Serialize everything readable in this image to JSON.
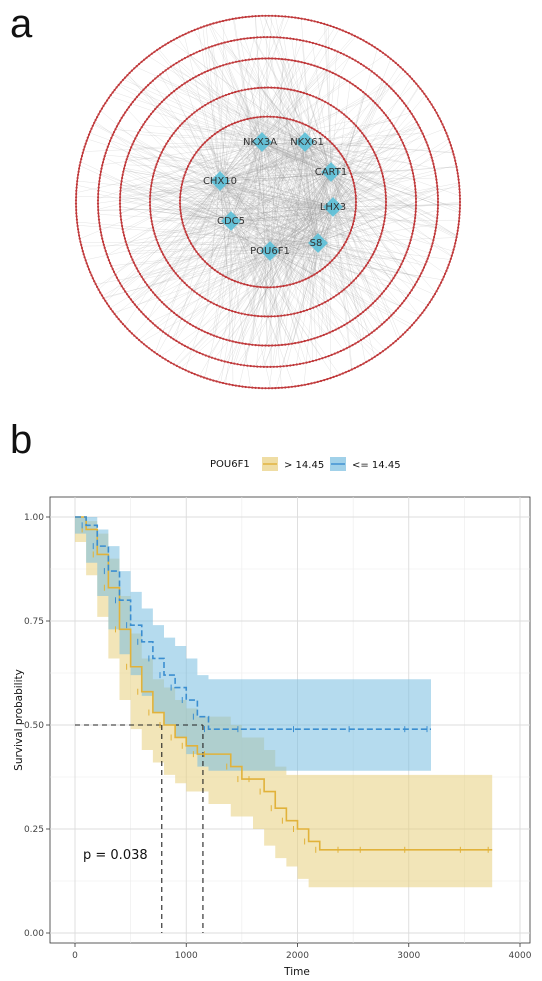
{
  "panel_a": {
    "letter": "a",
    "ring_count": 5,
    "hub_color": "#5bc0d8",
    "edge_color": "#9a9a9a",
    "node_color": "#c0393b",
    "hubs": [
      {
        "label": "NKX3A"
      },
      {
        "label": "NKX61"
      },
      {
        "label": "CART1"
      },
      {
        "label": "CHX10"
      },
      {
        "label": "LHX3"
      },
      {
        "label": "CDC5"
      },
      {
        "label": "S8"
      },
      {
        "label": "POU6F1"
      }
    ]
  },
  "panel_b": {
    "letter": "b",
    "p_value": "p = 0.038"
  },
  "chart_data": {
    "type": "line",
    "xlabel": "Time",
    "ylabel": "Survival probability",
    "xlim": [
      0,
      4000
    ],
    "ylim": [
      0,
      1
    ],
    "x_ticks": [
      "0",
      "1000",
      "2000",
      "3000",
      "4000"
    ],
    "y_ticks": [
      "0.00",
      "0.25",
      "0.50",
      "0.75",
      "1.00"
    ],
    "grid": true,
    "legend": {
      "title": "POU6F1",
      "placement": "top"
    },
    "median_lines": [
      780,
      1150
    ],
    "series": [
      {
        "name": "> 14.45",
        "color": "#e1b23a",
        "fill": "#e8cf7e",
        "x": [
          0,
          100,
          200,
          300,
          400,
          500,
          600,
          700,
          800,
          900,
          1000,
          1100,
          1200,
          1400,
          1500,
          1600,
          1700,
          1800,
          1900,
          2000,
          2100,
          2200,
          2400,
          2600,
          3000,
          3500,
          3750
        ],
        "y": [
          1.0,
          0.97,
          0.91,
          0.83,
          0.73,
          0.64,
          0.58,
          0.53,
          0.5,
          0.47,
          0.45,
          0.43,
          0.43,
          0.4,
          0.37,
          0.37,
          0.34,
          0.3,
          0.27,
          0.25,
          0.22,
          0.2,
          0.2,
          0.2,
          0.2,
          0.2,
          0.2
        ],
        "lower": [
          1.0,
          0.94,
          0.86,
          0.76,
          0.66,
          0.56,
          0.49,
          0.44,
          0.41,
          0.38,
          0.36,
          0.34,
          0.34,
          0.31,
          0.28,
          0.28,
          0.25,
          0.21,
          0.18,
          0.16,
          0.13,
          0.11,
          0.11,
          0.11,
          0.11,
          0.11,
          0.11
        ],
        "upper": [
          1.0,
          0.99,
          0.96,
          0.9,
          0.81,
          0.72,
          0.66,
          0.61,
          0.59,
          0.56,
          0.54,
          0.52,
          0.52,
          0.5,
          0.47,
          0.47,
          0.44,
          0.4,
          0.38,
          0.38,
          0.38,
          0.38,
          0.38,
          0.38,
          0.38,
          0.38,
          0.38
        ]
      },
      {
        "name": "<= 14.45",
        "color": "#3b8ed0",
        "fill": "#79bde0",
        "x": [
          0,
          100,
          200,
          300,
          400,
          500,
          600,
          700,
          800,
          900,
          1000,
          1100,
          1200,
          1500,
          2000,
          2500,
          3000,
          3200
        ],
        "y": [
          1.0,
          0.98,
          0.93,
          0.87,
          0.8,
          0.74,
          0.7,
          0.66,
          0.62,
          0.59,
          0.56,
          0.52,
          0.49,
          0.49,
          0.49,
          0.49,
          0.49,
          0.49
        ],
        "lower": [
          1.0,
          0.96,
          0.89,
          0.81,
          0.73,
          0.67,
          0.62,
          0.57,
          0.53,
          0.5,
          0.47,
          0.43,
          0.4,
          0.39,
          0.39,
          0.39,
          0.39,
          0.39
        ],
        "upper": [
          1.0,
          1.0,
          0.97,
          0.93,
          0.87,
          0.82,
          0.78,
          0.74,
          0.71,
          0.69,
          0.66,
          0.62,
          0.61,
          0.61,
          0.61,
          0.61,
          0.61,
          0.61
        ]
      }
    ]
  }
}
